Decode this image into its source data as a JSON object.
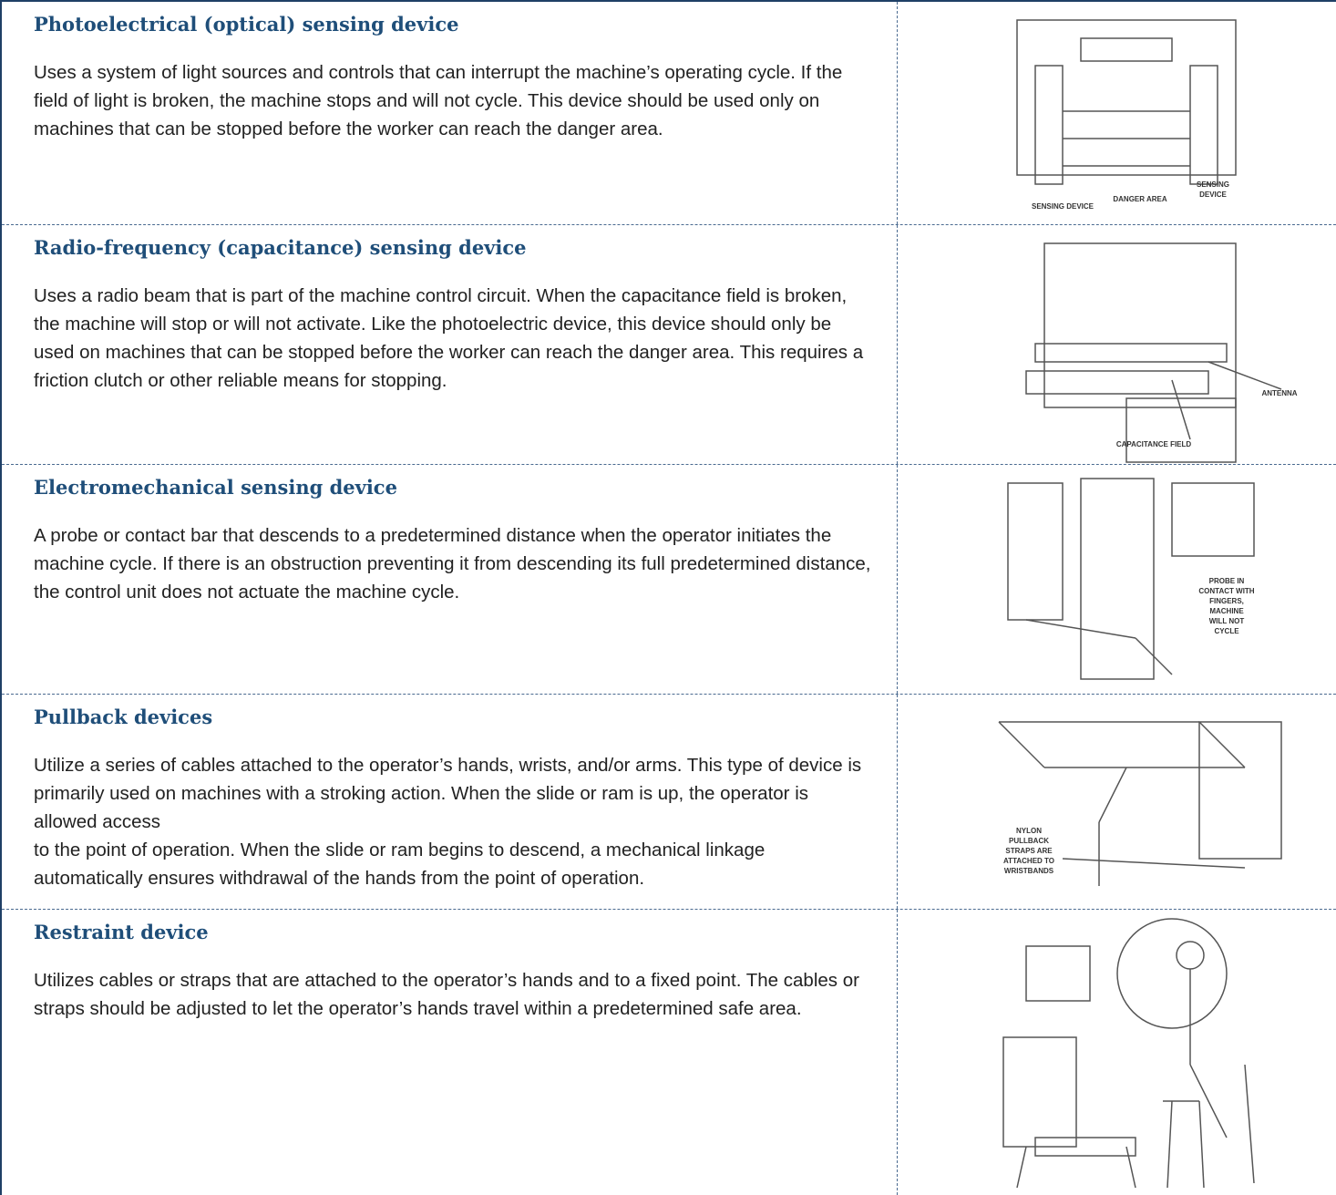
{
  "rows": [
    {
      "title": "Photoelectrical (optical) sensing device",
      "description": "Uses a system of light sources and controls that can interrupt the machine’s operating cycle. If the field of light is broken, the machine stops and will not cycle. This device should be used only on machines that can be stopped before the worker can reach the danger area.",
      "image_labels": [
        [
          "SENSING DEVICE"
        ],
        [
          "DANGER AREA"
        ],
        [
          "SENSING",
          "DEVICE"
        ]
      ]
    },
    {
      "title": "Radio-frequency (capacitance) sensing device",
      "description": "Uses a radio beam that is part of the machine control circuit. When the capacitance field is broken, the machine will stop or will not activate. Like the photoelectric device, this device should only be used on machines that can be stopped before the worker can reach the danger area. This requires a friction clutch or other reliable means for stopping.",
      "image_labels": [
        [
          "ANTENNA"
        ],
        [
          "CAPACITANCE FIELD"
        ]
      ]
    },
    {
      "title": "Electromechanical sensing device",
      "description": "A probe or contact bar that descends to a predetermined distance  when the operator initiates the machine cycle. If there is an obstruction preventing it from descending its full predetermined distance, the control unit does not actuate the machine cycle.",
      "image_labels": [
        [
          "PROBE IN",
          "CONTACT WITH",
          "FINGERS,",
          "MACHINE",
          "WILL NOT",
          "CYCLE"
        ]
      ]
    },
    {
      "title": "Pullback devices",
      "description": "Utilize a series of cables attached to the operator’s hands, wrists, and/or arms. This type of device is primarily used on machines with a stroking action. When the slide or ram is up, the operator is allowed access\nto the point of operation. When the slide or ram begins to descend, a mechanical linkage automatically ensures withdrawal of the hands from the point of operation.",
      "image_labels": [
        [
          "NYLON",
          "PULLBACK",
          "STRAPS ARE",
          "ATTACHED TO",
          "WRISTBANDS"
        ]
      ]
    },
    {
      "title": "Restraint device",
      "description": "Utilizes cables or straps that are attached to the operator’s hands  and to a fixed point. The cables or straps should be adjusted to let the operator’s hands travel within a predetermined safe area.",
      "image_labels": []
    }
  ]
}
